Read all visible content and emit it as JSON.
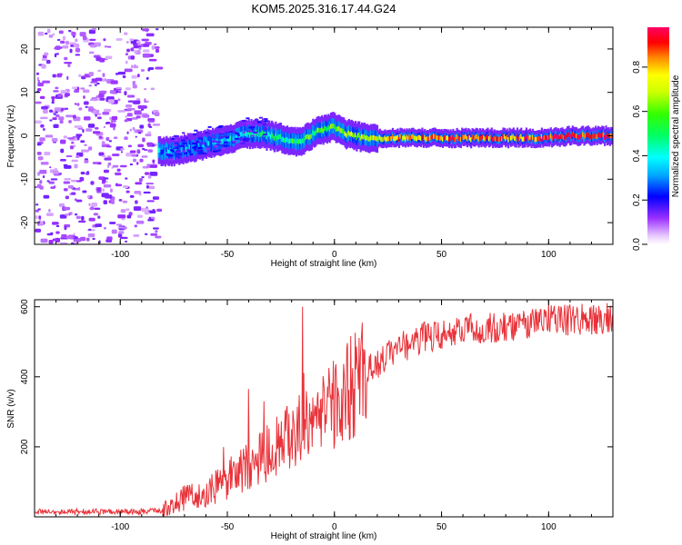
{
  "figure_title": "KOM5.2025.316.17.44.G24",
  "chart_data": [
    {
      "type": "heatmap",
      "panel": "spectrogram",
      "xlabel": "Height of straight line (km)",
      "ylabel": "Frequency (Hz)",
      "xlim": [
        -140,
        130
      ],
      "ylim": [
        -25,
        25
      ],
      "x_ticks": [
        -100,
        -50,
        0,
        50,
        100
      ],
      "y_ticks": [
        -20,
        -10,
        0,
        10,
        20
      ],
      "x_tick_labels": [
        "-100",
        "-50",
        "0",
        "50",
        "100"
      ],
      "y_tick_labels": [
        "-20",
        "-10",
        "0",
        "10",
        "20"
      ],
      "noise_region_x": [
        -140,
        -83
      ],
      "ridge": {
        "x": [
          -82,
          -75,
          -70,
          -65,
          -60,
          -55,
          -50,
          -45,
          -40,
          -35,
          -30,
          -25,
          -20,
          -15,
          -10,
          -5,
          0,
          5,
          10,
          15,
          20,
          30,
          40,
          50,
          60,
          70,
          80,
          90,
          100,
          110,
          120,
          130
        ],
        "freq": [
          -3.5,
          -3.5,
          -3.0,
          -2.5,
          -2.0,
          -1.5,
          -1.0,
          0.0,
          0.5,
          0.5,
          0.0,
          -0.5,
          -1.5,
          -1.0,
          0.5,
          1.5,
          2.0,
          0.5,
          0.0,
          -0.5,
          -0.5,
          -0.5,
          -0.5,
          -0.5,
          -0.5,
          -0.5,
          -0.5,
          -0.5,
          -0.5,
          0.0,
          0.0,
          0.0
        ],
        "amplitude": [
          0.3,
          0.32,
          0.32,
          0.33,
          0.34,
          0.35,
          0.37,
          0.4,
          0.42,
          0.45,
          0.47,
          0.5,
          0.5,
          0.52,
          0.58,
          0.6,
          0.62,
          0.65,
          0.7,
          0.75,
          0.78,
          0.8,
          0.82,
          0.84,
          0.86,
          0.88,
          0.88,
          0.9,
          0.92,
          0.94,
          0.96,
          0.97
        ]
      },
      "colorbar": {
        "label": "Normalized spectral amplitude",
        "range": [
          0,
          0.98
        ],
        "ticks": [
          0.0,
          0.2,
          0.4,
          0.6,
          0.8
        ],
        "tick_labels": [
          "0.0",
          "0.2",
          "0.4",
          "0.6",
          "0.8"
        ]
      }
    },
    {
      "type": "line",
      "panel": "snr",
      "xlabel": "Height of straight line (km)",
      "ylabel": "SNR (v/v)",
      "xlim": [
        -140,
        130
      ],
      "ylim": [
        0,
        620
      ],
      "x_ticks": [
        -100,
        -50,
        0,
        50,
        100
      ],
      "y_ticks": [
        200,
        400,
        600
      ],
      "x_tick_labels": [
        "-100",
        "-50",
        "0",
        "50",
        "100"
      ],
      "y_tick_labels": [
        "200",
        "400",
        "600"
      ],
      "color": "#e8333a",
      "trend": {
        "x": [
          -140,
          -110,
          -90,
          -80,
          -75,
          -70,
          -60,
          -50,
          -40,
          -30,
          -20,
          -10,
          0,
          10,
          20,
          30,
          40,
          60,
          80,
          100,
          120,
          130
        ],
        "snr": [
          15,
          15,
          15,
          18,
          30,
          55,
          70,
          100,
          150,
          190,
          230,
          270,
          330,
          380,
          440,
          480,
          510,
          535,
          545,
          560,
          565,
          570
        ]
      },
      "spikes": [
        {
          "x": -40,
          "snr": 365
        },
        {
          "x": -33,
          "snr": 330
        },
        {
          "x": -15,
          "snr": 600
        },
        {
          "x": 100,
          "snr": 615
        }
      ]
    }
  ]
}
